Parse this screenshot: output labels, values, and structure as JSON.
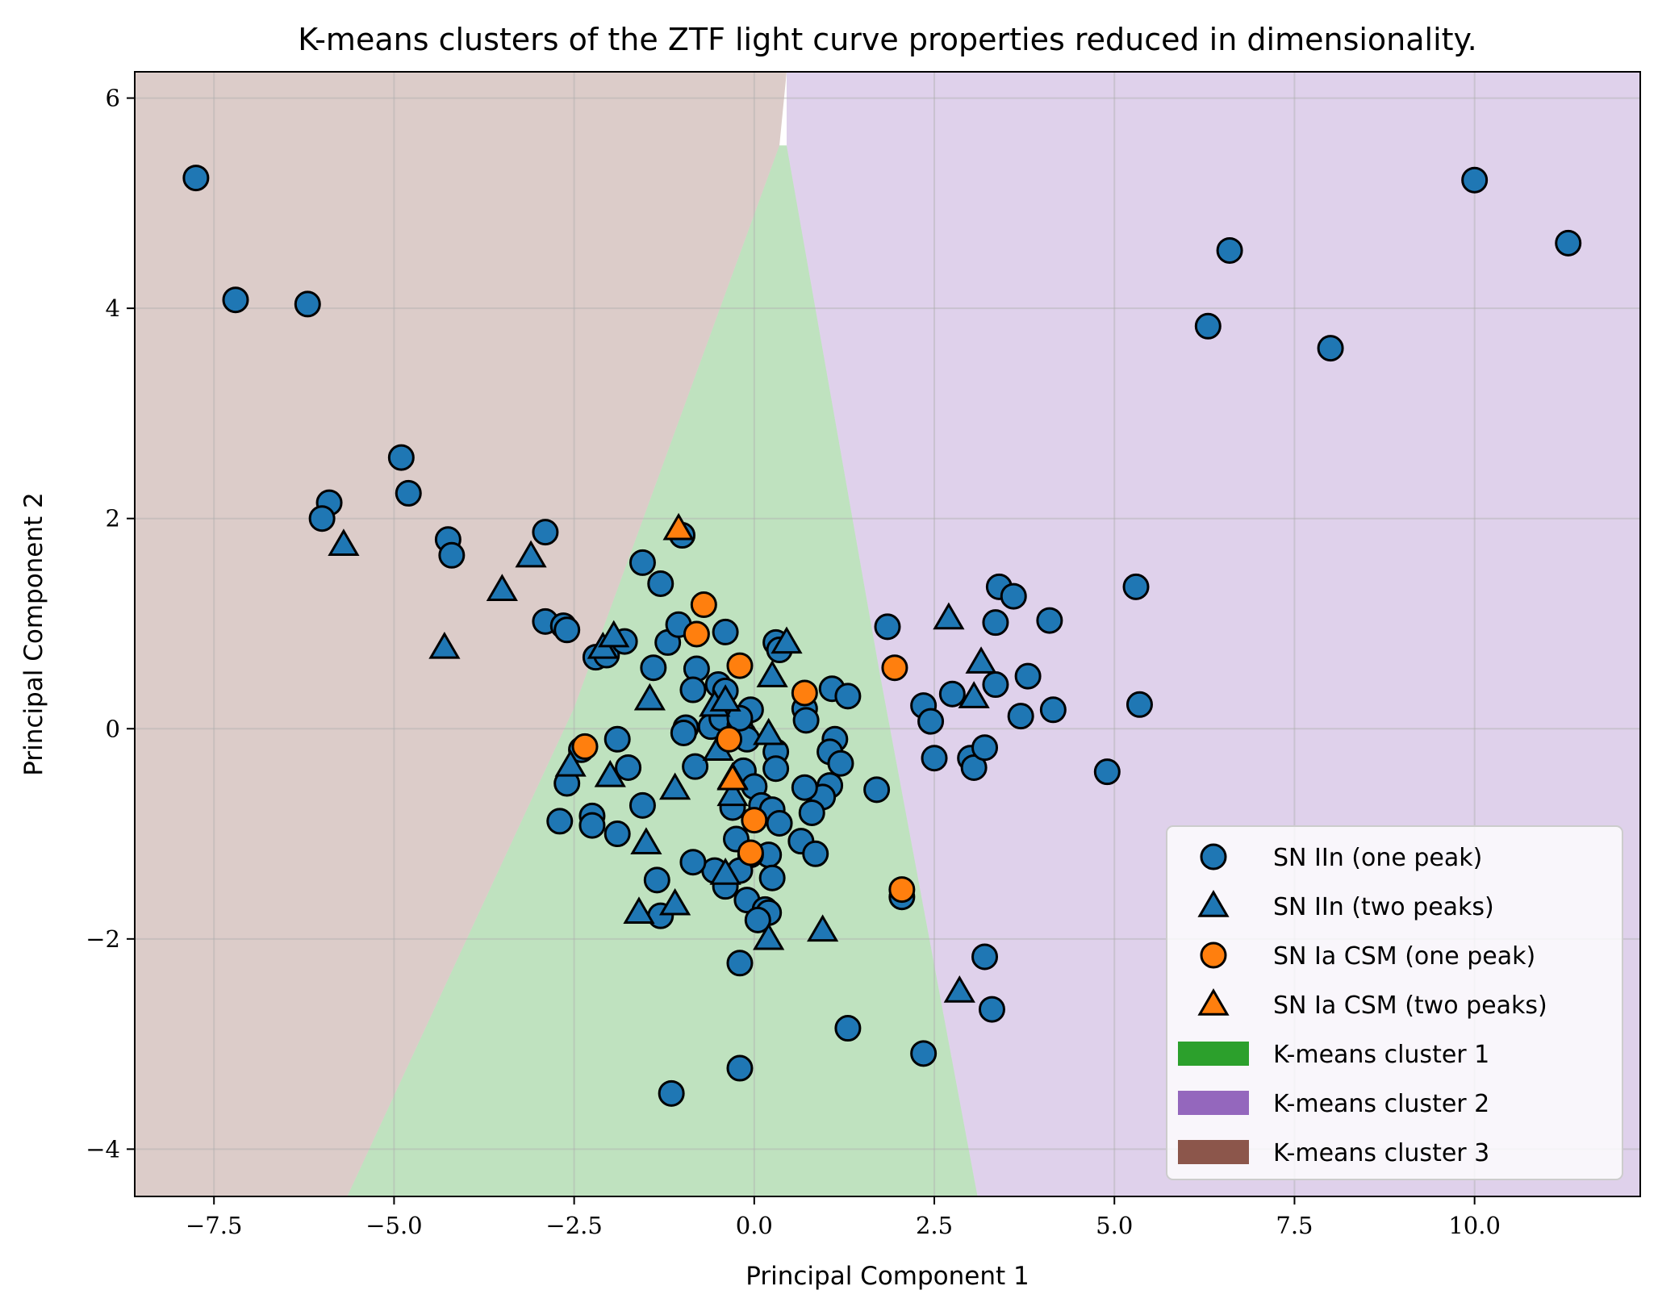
{
  "chart_data": {
    "type": "scatter",
    "title": "K-means clusters of the ZTF light curve properties reduced in dimensionality.",
    "xlabel": "Principal Component 1",
    "ylabel": "Principal Component 2",
    "xlim": [
      -8.6,
      12.3
    ],
    "ylim": [
      -4.45,
      6.25
    ],
    "x_ticks": [
      -7.5,
      -5.0,
      -2.5,
      0.0,
      2.5,
      5.0,
      7.5,
      10.0
    ],
    "x_tick_labels": [
      "−7.5",
      "−5.0",
      "−2.5",
      "0.0",
      "2.5",
      "5.0",
      "7.5",
      "10.0"
    ],
    "y_ticks": [
      -4,
      -2,
      0,
      2,
      4,
      6
    ],
    "y_tick_labels": [
      "−4",
      "−2",
      "0",
      "2",
      "4",
      "6"
    ],
    "grid": true,
    "legend_position": "lower-right",
    "regions": [
      {
        "name": "K-means cluster 1",
        "color": "#2ca02c",
        "polygon": [
          [
            -5.65,
            -4.45
          ],
          [
            3.1,
            -4.45
          ],
          [
            1.75,
            0.5
          ],
          [
            0.45,
            5.55
          ],
          [
            0.35,
            5.55
          ],
          [
            -2.5,
            0.2
          ]
        ]
      },
      {
        "name": "K-means cluster 2",
        "color": "#9467bd",
        "polygon": [
          [
            3.1,
            -4.45
          ],
          [
            12.3,
            -4.45
          ],
          [
            12.3,
            6.25
          ],
          [
            0.45,
            6.25
          ],
          [
            0.45,
            5.55
          ],
          [
            1.75,
            0.5
          ]
        ]
      },
      {
        "name": "K-means cluster 3",
        "color": "#8c564b",
        "polygon": [
          [
            -8.6,
            -4.45
          ],
          [
            -5.65,
            -4.45
          ],
          [
            -2.5,
            0.2
          ],
          [
            0.35,
            5.55
          ],
          [
            0.45,
            6.25
          ],
          [
            -8.6,
            6.25
          ]
        ]
      }
    ],
    "series": [
      {
        "name": "SN IIn (one peak)",
        "marker": "circle",
        "color": "#1f77b4",
        "points": [
          [
            -7.75,
            5.24
          ],
          [
            -7.2,
            4.08
          ],
          [
            -6.2,
            4.04
          ],
          [
            -4.9,
            2.58
          ],
          [
            -4.8,
            2.24
          ],
          [
            -5.9,
            2.15
          ],
          [
            -6.0,
            2.0
          ],
          [
            -4.25,
            1.8
          ],
          [
            -4.2,
            1.65
          ],
          [
            -2.9,
            1.87
          ],
          [
            -2.9,
            1.02
          ],
          [
            -2.65,
            0.98
          ],
          [
            -2.6,
            0.94
          ],
          [
            -2.2,
            0.68
          ],
          [
            -2.05,
            0.7
          ],
          [
            -1.8,
            0.83
          ],
          [
            -1.55,
            1.58
          ],
          [
            -1.3,
            1.38
          ],
          [
            -1.4,
            0.58
          ],
          [
            -1.2,
            0.82
          ],
          [
            -1.05,
            0.99
          ],
          [
            -1.0,
            1.84
          ],
          [
            -0.4,
            0.92
          ],
          [
            -0.8,
            0.57
          ],
          [
            -0.85,
            0.37
          ],
          [
            -0.6,
            0.02
          ],
          [
            -0.95,
            0.01
          ],
          [
            -0.98,
            -0.04
          ],
          [
            -0.5,
            0.42
          ],
          [
            -0.4,
            0.36
          ],
          [
            -0.45,
            0.1
          ],
          [
            -0.2,
            0.03
          ],
          [
            -0.15,
            -0.05
          ],
          [
            -0.05,
            0.18
          ],
          [
            0.3,
            0.82
          ],
          [
            0.35,
            0.75
          ],
          [
            0.7,
            0.19
          ],
          [
            0.72,
            0.08
          ],
          [
            1.08,
            0.38
          ],
          [
            1.3,
            0.31
          ],
          [
            1.12,
            -0.1
          ],
          [
            1.05,
            -0.22
          ],
          [
            1.2,
            -0.33
          ],
          [
            1.05,
            -0.54
          ],
          [
            0.95,
            -0.65
          ],
          [
            0.3,
            -0.22
          ],
          [
            0.3,
            -0.38
          ],
          [
            -0.1,
            -0.1
          ],
          [
            -0.15,
            -0.4
          ],
          [
            0.0,
            -0.55
          ],
          [
            0.1,
            -0.73
          ],
          [
            0.25,
            -0.77
          ],
          [
            0.35,
            -0.9
          ],
          [
            0.7,
            -0.56
          ],
          [
            0.8,
            -0.8
          ],
          [
            0.65,
            -1.07
          ],
          [
            0.85,
            -1.19
          ],
          [
            0.2,
            -1.2
          ],
          [
            0.25,
            -1.42
          ],
          [
            -0.05,
            -1.2
          ],
          [
            -0.2,
            -1.35
          ],
          [
            -0.25,
            -1.05
          ],
          [
            -0.4,
            -1.5
          ],
          [
            -0.55,
            -1.35
          ],
          [
            -0.85,
            -1.27
          ],
          [
            -0.1,
            -1.63
          ],
          [
            0.15,
            -1.72
          ],
          [
            0.2,
            -1.75
          ],
          [
            0.05,
            -1.82
          ],
          [
            -0.2,
            -2.23
          ],
          [
            -1.3,
            -1.78
          ],
          [
            -1.35,
            -1.44
          ],
          [
            -1.55,
            -0.73
          ],
          [
            -1.75,
            -0.37
          ],
          [
            -1.9,
            -0.1
          ],
          [
            -1.9,
            -1.0
          ],
          [
            -2.25,
            -0.83
          ],
          [
            -2.25,
            -0.92
          ],
          [
            -2.6,
            -0.52
          ],
          [
            -2.7,
            -0.88
          ],
          [
            -2.4,
            -0.2
          ],
          [
            -0.82,
            -0.36
          ],
          [
            -0.3,
            -0.75
          ],
          [
            -0.2,
            0.1
          ],
          [
            1.7,
            -0.58
          ],
          [
            1.85,
            0.97
          ],
          [
            2.05,
            -1.6
          ],
          [
            2.35,
            0.22
          ],
          [
            2.45,
            0.07
          ],
          [
            2.5,
            -0.28
          ],
          [
            2.75,
            0.33
          ],
          [
            3.0,
            -0.28
          ],
          [
            3.05,
            -0.37
          ],
          [
            3.2,
            -0.18
          ],
          [
            3.35,
            0.42
          ],
          [
            3.35,
            1.01
          ],
          [
            3.4,
            1.35
          ],
          [
            3.6,
            1.26
          ],
          [
            3.8,
            0.5
          ],
          [
            3.7,
            0.12
          ],
          [
            4.1,
            1.03
          ],
          [
            4.15,
            0.18
          ],
          [
            4.9,
            -0.41
          ],
          [
            5.3,
            1.35
          ],
          [
            5.35,
            0.23
          ],
          [
            3.2,
            -2.17
          ],
          [
            3.3,
            -2.67
          ],
          [
            2.35,
            -3.09
          ],
          [
            1.3,
            -2.85
          ],
          [
            -0.2,
            -3.23
          ],
          [
            -1.15,
            -3.47
          ],
          [
            6.3,
            3.83
          ],
          [
            6.6,
            4.55
          ],
          [
            8.0,
            3.62
          ],
          [
            10.0,
            5.22
          ],
          [
            11.3,
            4.62
          ]
        ]
      },
      {
        "name": "SN IIn (two peaks)",
        "marker": "triangle",
        "color": "#1f77b4",
        "points": [
          [
            -5.7,
            1.75
          ],
          [
            -4.3,
            0.77
          ],
          [
            -3.5,
            1.32
          ],
          [
            -3.1,
            1.64
          ],
          [
            -2.55,
            -0.35
          ],
          [
            -2.1,
            0.77
          ],
          [
            -1.95,
            0.88
          ],
          [
            -2.0,
            -0.45
          ],
          [
            -1.45,
            0.28
          ],
          [
            -1.1,
            -0.57
          ],
          [
            -1.5,
            -1.09
          ],
          [
            -1.6,
            -1.75
          ],
          [
            -1.1,
            -1.67
          ],
          [
            -0.55,
            0.22
          ],
          [
            -0.4,
            0.27
          ],
          [
            -0.5,
            -0.2
          ],
          [
            -0.4,
            -1.38
          ],
          [
            -0.3,
            -0.47
          ],
          [
            -0.3,
            -0.63
          ],
          [
            0.2,
            -0.05
          ],
          [
            0.25,
            0.5
          ],
          [
            0.45,
            0.82
          ],
          [
            0.2,
            -2.0
          ],
          [
            0.95,
            -1.92
          ],
          [
            2.7,
            1.05
          ],
          [
            2.85,
            -2.5
          ],
          [
            3.05,
            0.3
          ],
          [
            3.15,
            0.63
          ]
        ]
      },
      {
        "name": "SN Ia CSM (one peak)",
        "marker": "circle",
        "color": "#ff7f0e",
        "points": [
          [
            -2.35,
            -0.17
          ],
          [
            -0.7,
            1.18
          ],
          [
            -0.8,
            0.9
          ],
          [
            -0.2,
            0.6
          ],
          [
            0.7,
            0.34
          ],
          [
            -0.35,
            -0.1
          ],
          [
            0.0,
            -0.87
          ],
          [
            -0.05,
            -1.18
          ],
          [
            1.95,
            0.58
          ],
          [
            2.05,
            -1.53
          ]
        ]
      },
      {
        "name": "SN Ia CSM (two peaks)",
        "marker": "triangle",
        "color": "#ff7f0e",
        "points": [
          [
            -1.05,
            1.9
          ],
          [
            -0.3,
            -0.48
          ]
        ]
      }
    ],
    "legend": [
      {
        "label": "SN IIn (one peak)",
        "marker": "circle",
        "color": "#1f77b4"
      },
      {
        "label": "SN IIn (two peaks)",
        "marker": "triangle",
        "color": "#1f77b4"
      },
      {
        "label": "SN Ia CSM (one peak)",
        "marker": "circle",
        "color": "#ff7f0e"
      },
      {
        "label": "SN Ia CSM (two peaks)",
        "marker": "triangle",
        "color": "#ff7f0e"
      },
      {
        "label": "K-means cluster 1",
        "marker": "patch",
        "color": "#2ca02c"
      },
      {
        "label": "K-means cluster 2",
        "marker": "patch",
        "color": "#9467bd"
      },
      {
        "label": "K-means cluster 3",
        "marker": "patch",
        "color": "#8c564b"
      }
    ]
  }
}
